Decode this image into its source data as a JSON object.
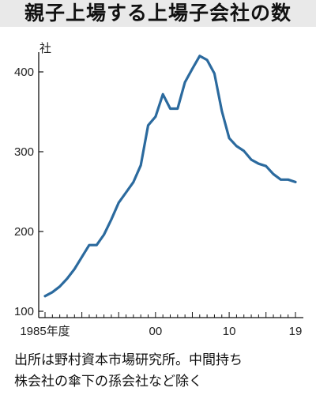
{
  "title": "親子上場する上場子会社の数",
  "note": {
    "line1": "出所は野村資本市場研究所。中間持ち",
    "line2": "株会社の傘下の孫会社など除く"
  },
  "colors": {
    "line": "#2b6a9e",
    "axis": "#111111",
    "title_bg": "#e9e9e9"
  },
  "chart_data": {
    "type": "line",
    "title": "親子上場する上場子会社の数",
    "ylabel": "社",
    "ylim": [
      100,
      430
    ],
    "yticks": [
      100,
      200,
      300,
      400
    ],
    "xlim": [
      1985,
      2019
    ],
    "xticks": [
      {
        "value": 1985,
        "label": "1985年度"
      },
      {
        "value": 2000,
        "label": "00"
      },
      {
        "value": 2010,
        "label": "10"
      },
      {
        "value": 2019,
        "label": "19"
      }
    ],
    "grid": false,
    "series": [
      {
        "x": [
          1985,
          1986,
          1987,
          1988,
          1989,
          1990,
          1991,
          1992,
          1993,
          1994,
          1995,
          1996,
          1997,
          1998,
          1999,
          2000,
          2001,
          2002,
          2003,
          2004,
          2005,
          2006,
          2007,
          2008,
          2009,
          2010,
          2011,
          2012,
          2013,
          2014,
          2015,
          2016,
          2017,
          2018,
          2019
        ],
        "values": [
          119,
          124,
          131,
          141,
          153,
          168,
          183,
          183,
          196,
          215,
          236,
          249,
          262,
          283,
          333,
          344,
          372,
          354,
          354,
          387,
          404,
          420,
          415,
          398,
          351,
          317,
          307,
          301,
          290,
          285,
          282,
          272,
          265,
          265,
          262
        ]
      }
    ]
  }
}
